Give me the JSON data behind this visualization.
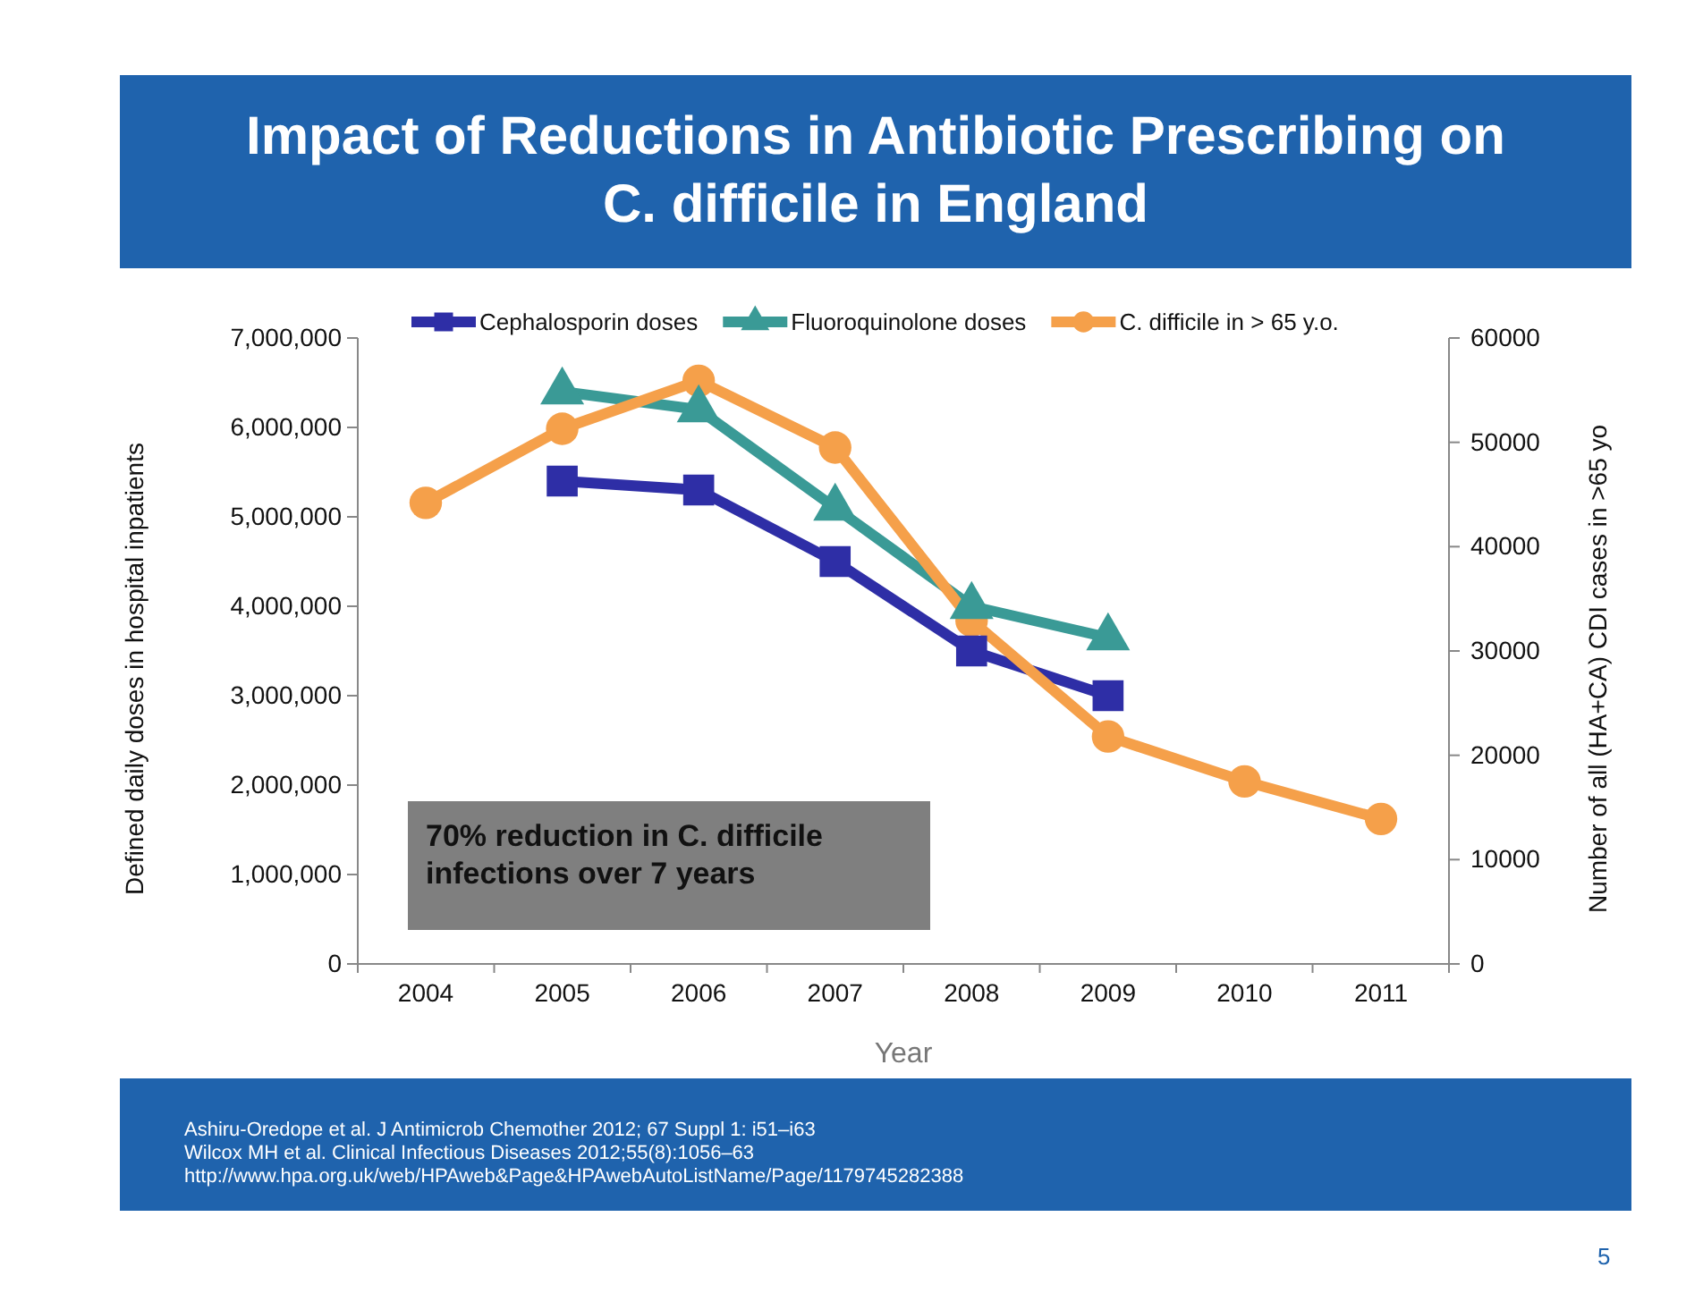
{
  "chart_data": {
    "type": "line",
    "title": "Impact of Reductions in Antibiotic Prescribing on C. difficile in England",
    "xlabel": "Year",
    "ylabel": "Defined daily doses in hospital inpatients",
    "y2label": "Number of all (HA+CA) CDI cases in >65 yo",
    "categories": [
      "2004",
      "2005",
      "2006",
      "2007",
      "2008",
      "2009",
      "2010",
      "2011"
    ],
    "series": [
      {
        "name": "Cephalosporin doses",
        "color": "#2e2ea6",
        "marker": "square",
        "values": [
          null,
          5400000,
          5300000,
          4500000,
          3500000,
          3000000,
          null,
          null
        ]
      },
      {
        "name": "Fluoroquinolone doses",
        "color": "#3a9a96",
        "marker": "triangle",
        "values": [
          null,
          6400000,
          6200000,
          5100000,
          4000000,
          3650000,
          null,
          null
        ]
      },
      {
        "name": "C. difficile in > 65 y.o.",
        "color": "#f5a04a",
        "marker": "circle",
        "axis": "y2",
        "values": [
          44200,
          51300,
          55900,
          49500,
          32900,
          21800,
          17500,
          13900
        ]
      }
    ],
    "ylim": [
      0,
      7000000
    ],
    "yticks": [
      {
        "value": 0,
        "label": "0"
      },
      {
        "value": 1000000,
        "label": "1,000,000"
      },
      {
        "value": 2000000,
        "label": "2,000,000"
      },
      {
        "value": 3000000,
        "label": "3,000,000"
      },
      {
        "value": 4000000,
        "label": "4,000,000"
      },
      {
        "value": 5000000,
        "label": "5,000,000"
      },
      {
        "value": 6000000,
        "label": "6,000,000"
      },
      {
        "value": 7000000,
        "label": "7,000,000"
      }
    ],
    "y2lim": [
      0,
      60000
    ],
    "y2ticks": [
      0,
      10000,
      20000,
      30000,
      40000,
      50000,
      60000
    ],
    "legend": "top",
    "line_style": "solid",
    "annotations": [
      "70% reduction in C. difficile infections over 7 years",
      "Ashiru-Oredope et al. J Antimicrob Chemother 2012; 67 Suppl 1: i51–i63",
      "Wilcox MH et al. Clinical Infectious Diseases 2012;55(8):1056–63",
      "http://www.hpa.org.uk/web/HPAweb&Page&HPAwebAutoListName/Page/1179745282388",
      "5"
    ]
  }
}
